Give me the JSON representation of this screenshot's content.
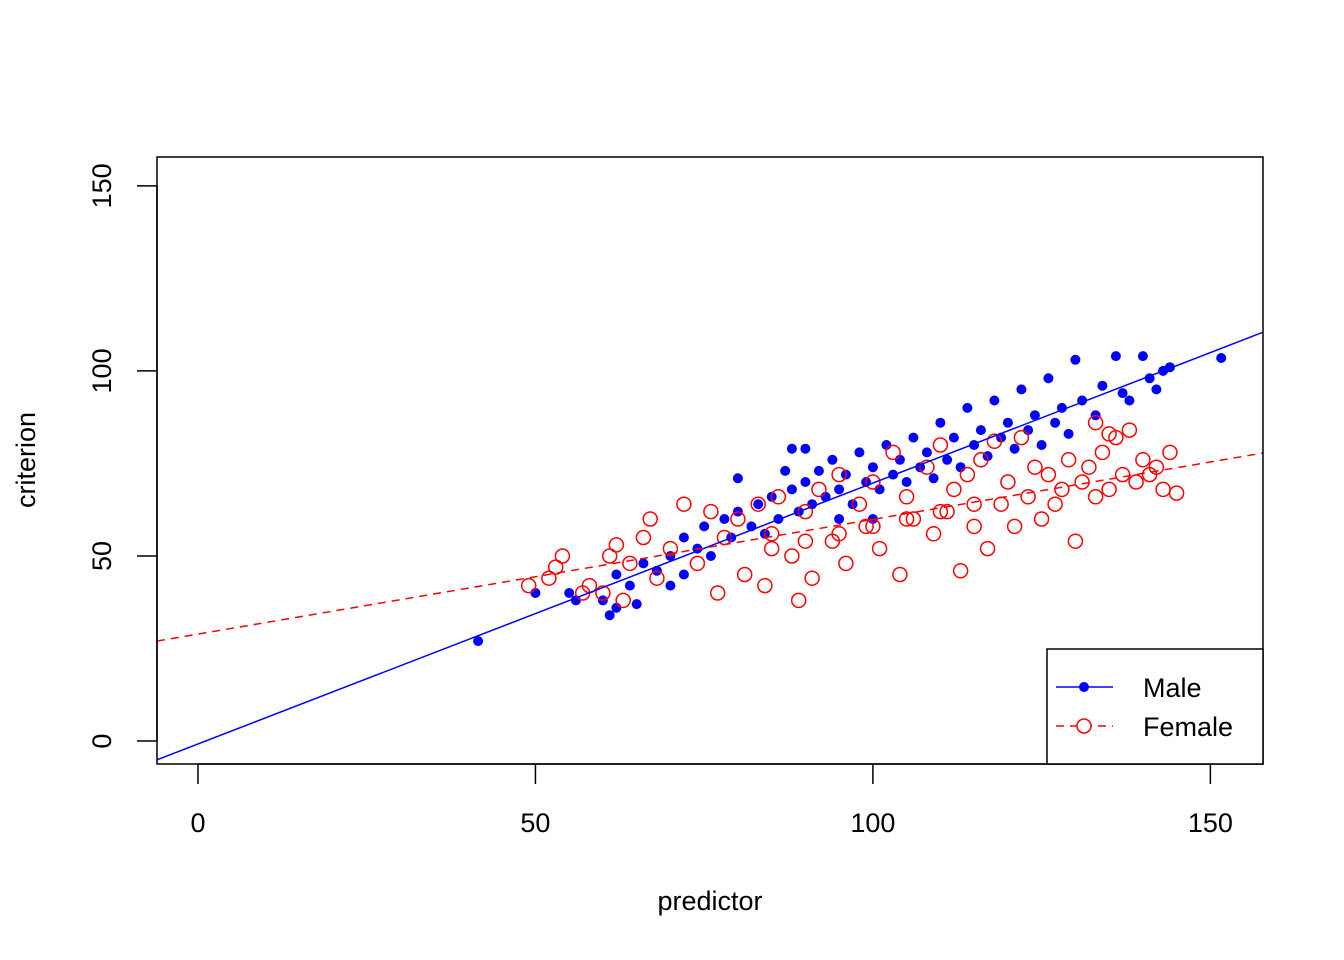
{
  "chart_data": {
    "type": "scatter",
    "title": "",
    "xlabel": "predictor",
    "ylabel": "criterion",
    "xlim": [
      -6.07,
      157.8
    ],
    "ylim": [
      -6.2,
      157.8
    ],
    "xticks": [
      0,
      50,
      100,
      150
    ],
    "yticks": [
      0,
      50,
      100,
      150
    ],
    "grid": false,
    "legend_position": "bottom-right",
    "series": [
      {
        "name": "Male",
        "color": "#0000FF",
        "marker": "filled-circle",
        "line_style": "solid",
        "fit_line": {
          "intercept": -0.8,
          "slope": 0.705
        },
        "points": [
          [
            41.5,
            27
          ],
          [
            50,
            40
          ],
          [
            55,
            40
          ],
          [
            56,
            38
          ],
          [
            60,
            38
          ],
          [
            61,
            34
          ],
          [
            62,
            36
          ],
          [
            65,
            37
          ],
          [
            62,
            45
          ],
          [
            64,
            42
          ],
          [
            66,
            48
          ],
          [
            68,
            46
          ],
          [
            70,
            50
          ],
          [
            72,
            55
          ],
          [
            74,
            52
          ],
          [
            75,
            58
          ],
          [
            76,
            50
          ],
          [
            78,
            60
          ],
          [
            79,
            55
          ],
          [
            80,
            62
          ],
          [
            82,
            58
          ],
          [
            83,
            64
          ],
          [
            84,
            56
          ],
          [
            85,
            66
          ],
          [
            86,
            60
          ],
          [
            88,
            68
          ],
          [
            89,
            62
          ],
          [
            90,
            70
          ],
          [
            91,
            64
          ],
          [
            92,
            73
          ],
          [
            93,
            66
          ],
          [
            94,
            76
          ],
          [
            95,
            68
          ],
          [
            96,
            72
          ],
          [
            97,
            64
          ],
          [
            98,
            78
          ],
          [
            99,
            70
          ],
          [
            100,
            74
          ],
          [
            101,
            68
          ],
          [
            102,
            80
          ],
          [
            103,
            72
          ],
          [
            104,
            76
          ],
          [
            105,
            70
          ],
          [
            106,
            82
          ],
          [
            107,
            74
          ],
          [
            108,
            78
          ],
          [
            109,
            71
          ],
          [
            110,
            86
          ],
          [
            111,
            76
          ],
          [
            112,
            82
          ],
          [
            113,
            74
          ],
          [
            114,
            90
          ],
          [
            115,
            80
          ],
          [
            116,
            84
          ],
          [
            117,
            77
          ],
          [
            118,
            92
          ],
          [
            119,
            82
          ],
          [
            120,
            86
          ],
          [
            121,
            79
          ],
          [
            122,
            95
          ],
          [
            123,
            84
          ],
          [
            124,
            88
          ],
          [
            125,
            80
          ],
          [
            126,
            98
          ],
          [
            127,
            86
          ],
          [
            128,
            90
          ],
          [
            129,
            83
          ],
          [
            130,
            103
          ],
          [
            131,
            92
          ],
          [
            133,
            88
          ],
          [
            134,
            96
          ],
          [
            136,
            104
          ],
          [
            137,
            94
          ],
          [
            138,
            92
          ],
          [
            140,
            104
          ],
          [
            141,
            98
          ],
          [
            142,
            95
          ],
          [
            143,
            100
          ],
          [
            144,
            101
          ],
          [
            151.6,
            103.5
          ],
          [
            88,
            79
          ],
          [
            90,
            79
          ],
          [
            87,
            73
          ],
          [
            80,
            71
          ],
          [
            95,
            60
          ],
          [
            100,
            60
          ],
          [
            70,
            42
          ],
          [
            72,
            45
          ]
        ]
      },
      {
        "name": "Female",
        "color": "#FF0000",
        "marker": "open-circle",
        "line_style": "dashed",
        "fit_line": {
          "intercept": 28.9,
          "slope": 0.31
        },
        "points": [
          [
            49,
            42
          ],
          [
            52,
            44
          ],
          [
            53,
            47
          ],
          [
            54,
            50
          ],
          [
            57,
            40
          ],
          [
            58,
            42
          ],
          [
            60,
            40
          ],
          [
            61,
            50
          ],
          [
            62,
            53
          ],
          [
            63,
            38
          ],
          [
            64,
            48
          ],
          [
            66,
            55
          ],
          [
            67,
            60
          ],
          [
            68,
            44
          ],
          [
            70,
            52
          ],
          [
            72,
            64
          ],
          [
            74,
            48
          ],
          [
            76,
            62
          ],
          [
            77,
            40
          ],
          [
            78,
            55
          ],
          [
            80,
            60
          ],
          [
            81,
            45
          ],
          [
            83,
            64
          ],
          [
            84,
            42
          ],
          [
            85,
            56
          ],
          [
            86,
            66
          ],
          [
            88,
            50
          ],
          [
            89,
            38
          ],
          [
            90,
            62
          ],
          [
            91,
            44
          ],
          [
            92,
            68
          ],
          [
            94,
            54
          ],
          [
            95,
            72
          ],
          [
            96,
            48
          ],
          [
            98,
            64
          ],
          [
            99,
            58
          ],
          [
            100,
            70
          ],
          [
            101,
            52
          ],
          [
            103,
            78
          ],
          [
            104,
            45
          ],
          [
            105,
            66
          ],
          [
            106,
            60
          ],
          [
            108,
            74
          ],
          [
            109,
            56
          ],
          [
            110,
            80
          ],
          [
            111,
            62
          ],
          [
            112,
            68
          ],
          [
            113,
            46
          ],
          [
            114,
            72
          ],
          [
            115,
            58
          ],
          [
            116,
            76
          ],
          [
            117,
            52
          ],
          [
            118,
            81
          ],
          [
            119,
            64
          ],
          [
            120,
            70
          ],
          [
            121,
            58
          ],
          [
            122,
            82
          ],
          [
            123,
            66
          ],
          [
            124,
            74
          ],
          [
            125,
            60
          ],
          [
            126,
            72
          ],
          [
            127,
            64
          ],
          [
            128,
            68
          ],
          [
            129,
            76
          ],
          [
            130,
            54
          ],
          [
            131,
            70
          ],
          [
            132,
            74
          ],
          [
            133,
            66
          ],
          [
            134,
            78
          ],
          [
            135,
            68
          ],
          [
            136,
            82
          ],
          [
            137,
            72
          ],
          [
            138,
            84
          ],
          [
            139,
            70
          ],
          [
            140,
            76
          ],
          [
            141,
            72
          ],
          [
            142,
            74
          ],
          [
            143,
            68
          ],
          [
            144,
            78
          ],
          [
            145,
            67
          ],
          [
            133,
            86
          ],
          [
            135,
            83
          ],
          [
            100,
            58
          ],
          [
            95,
            56
          ],
          [
            90,
            54
          ],
          [
            85,
            52
          ],
          [
            110,
            62
          ],
          [
            115,
            64
          ],
          [
            105,
            60
          ]
        ]
      }
    ]
  }
}
